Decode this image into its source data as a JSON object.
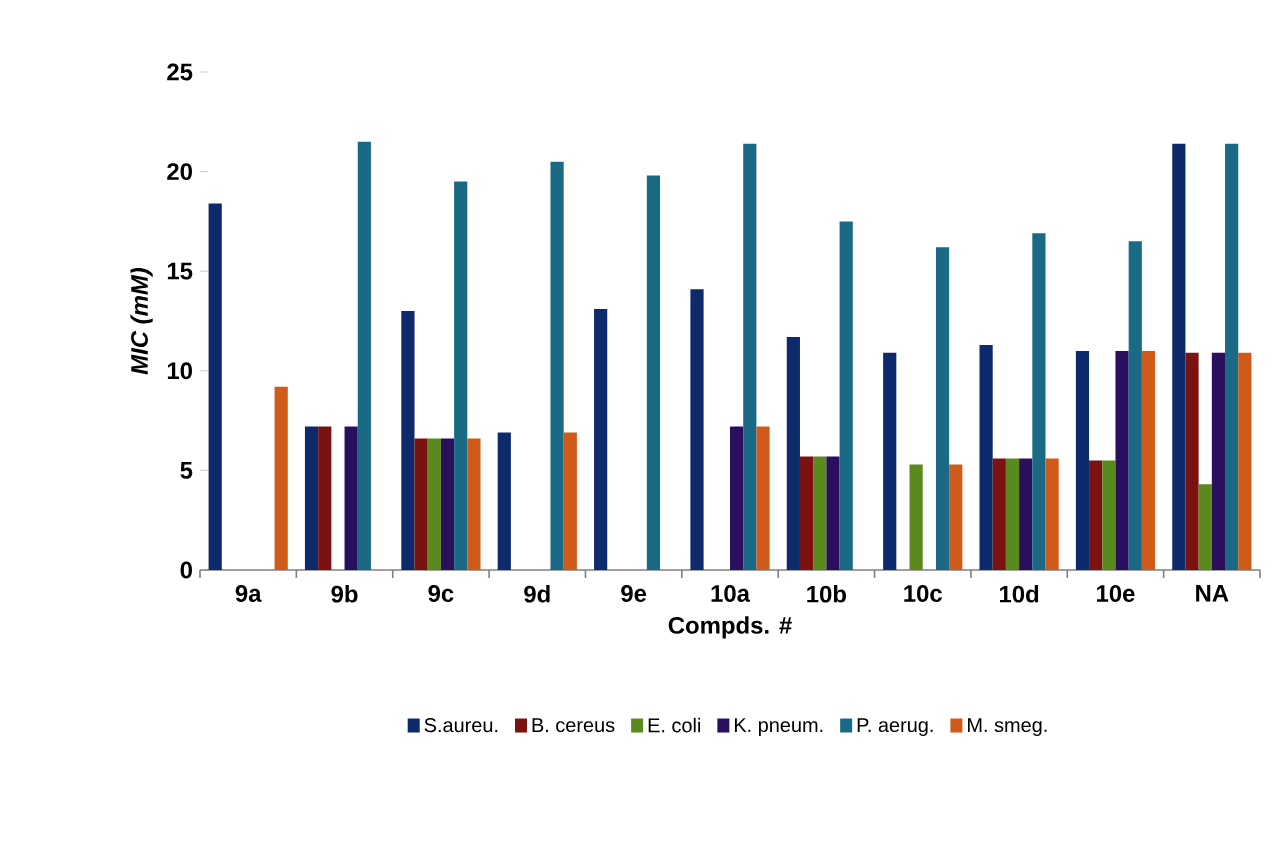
{
  "chart_data": {
    "type": "bar",
    "xlabel": "Compds. #",
    "ylabel": "MIC (mM)",
    "categories": [
      "9a",
      "9b",
      "9c",
      "9d",
      "9e",
      "10a",
      "10b",
      "10c",
      "10d",
      "10e",
      "NA"
    ],
    "series": [
      {
        "name": "S.aureu.",
        "color": "#0d2a6b",
        "values": [
          18.4,
          7.2,
          13.0,
          6.9,
          13.1,
          14.1,
          11.7,
          10.9,
          11.3,
          11.0,
          21.4
        ]
      },
      {
        "name": "B. cereus",
        "color": "#7a1212",
        "values": [
          null,
          7.2,
          6.6,
          null,
          null,
          null,
          5.7,
          null,
          5.6,
          5.5,
          10.9
        ]
      },
      {
        "name": "E. coli",
        "color": "#5a8a1e",
        "values": [
          null,
          null,
          6.6,
          null,
          null,
          null,
          5.7,
          5.3,
          5.6,
          5.5,
          4.3
        ]
      },
      {
        "name": "K. pneum.",
        "color": "#2a0f5e",
        "values": [
          null,
          7.2,
          6.6,
          null,
          null,
          7.2,
          5.7,
          null,
          5.6,
          11.0,
          10.9
        ]
      },
      {
        "name": "P. aerug.",
        "color": "#1a6a86",
        "values": [
          null,
          21.5,
          19.5,
          20.5,
          19.8,
          21.4,
          17.5,
          16.2,
          16.9,
          16.5,
          21.4
        ]
      },
      {
        "name": "M. smeg.",
        "color": "#d05a1a",
        "values": [
          9.2,
          null,
          6.6,
          6.9,
          null,
          7.2,
          null,
          5.3,
          5.6,
          11.0,
          10.9
        ]
      }
    ],
    "ylim": [
      0,
      25
    ],
    "yticks": [
      0,
      5,
      10,
      15,
      20,
      25
    ],
    "grid": false,
    "legend": "bottom"
  }
}
